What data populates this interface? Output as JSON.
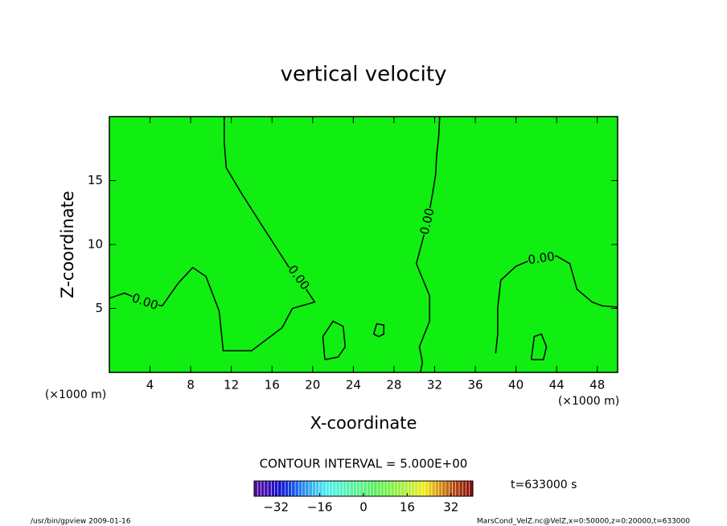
{
  "chart_data": {
    "type": "contour",
    "title": "vertical velocity",
    "xlabel": "X-coordinate",
    "ylabel": "Z-coordinate",
    "x_unit_labels": [
      "(×1000 m)",
      "(×1000 m)"
    ],
    "xlim": [
      0,
      50
    ],
    "xticks": [
      4,
      8,
      12,
      16,
      20,
      24,
      28,
      32,
      36,
      40,
      44,
      48
    ],
    "ylim": [
      0,
      20
    ],
    "yticks": [
      5,
      10,
      15
    ],
    "fill_color": "#11ee11",
    "line_color": "#000000",
    "contours": [
      {
        "level": 0,
        "label": "0.00",
        "x": [
          0,
          1.5,
          3.5,
          5.2,
          6.8
        ],
        "z": [
          5.8,
          6.2,
          5.5,
          5.2,
          7.0
        ]
      },
      {
        "level": 0,
        "x": [
          6.8,
          8.2,
          9.5,
          10.8
        ],
        "z": [
          7.0,
          8.2,
          7.5,
          4.8
        ]
      },
      {
        "level": 0,
        "label": "0.00",
        "x": [
          10.8,
          11.2,
          14,
          17,
          18,
          20.2,
          18.6,
          17.6,
          15,
          13,
          11.5,
          11.3,
          11.3
        ],
        "z": [
          4.8,
          1.7,
          1.7,
          3.5,
          5,
          5.5,
          7.4,
          8.3,
          11.5,
          14,
          16,
          18,
          20
        ]
      },
      {
        "level": 0,
        "label": "0.00",
        "x": [
          30.6,
          30.8,
          30.5,
          31.5,
          31.5,
          30.2,
          31.3,
          31.8,
          32.1,
          32.2,
          32.4,
          32.5
        ],
        "z": [
          0,
          0.8,
          2,
          4,
          6,
          8.5,
          11.8,
          14,
          15.5,
          17,
          18.5,
          20
        ]
      },
      {
        "level": 0,
        "label": "0.00",
        "x": [
          38,
          38.2,
          38.2,
          38.5,
          40,
          41.5,
          42.5,
          44,
          45.3,
          46,
          47.5,
          48.5,
          50
        ],
        "z": [
          1.5,
          3,
          5,
          7.2,
          8.3,
          8.8,
          8.9,
          9.1,
          8.5,
          6.5,
          5.5,
          5.2,
          5.1
        ]
      },
      {
        "level": 0,
        "x": [
          26,
          26.3,
          27,
          27,
          26.5,
          26
        ],
        "z": [
          3,
          3.8,
          3.7,
          3,
          2.8,
          3
        ]
      },
      {
        "level": 0,
        "x": [
          21.2,
          21,
          22,
          23,
          23.2,
          22.5,
          21.2
        ],
        "z": [
          1,
          2.8,
          4,
          3.6,
          2,
          1.2,
          1
        ]
      },
      {
        "level": 0,
        "x": [
          41.5,
          41.8,
          42.5,
          43,
          42.7,
          41.5
        ],
        "z": [
          1,
          2.8,
          3,
          2,
          1,
          1
        ]
      }
    ],
    "contour_interval_label": "CONTOUR INTERVAL = 5.000E+00",
    "time_label": "t=633000 s",
    "colorbar": {
      "lim": [
        -40,
        40
      ],
      "ticks": [
        {
          "value": -32,
          "label": "−32"
        },
        {
          "value": -16,
          "label": "−16"
        },
        0,
        16,
        32
      ]
    },
    "footer_left": "/usr/bin/gpview   2009-01-16",
    "footer_right": "MarsCond_VelZ.nc@VelZ,x=0:50000,z=0:20000,t=633000"
  }
}
